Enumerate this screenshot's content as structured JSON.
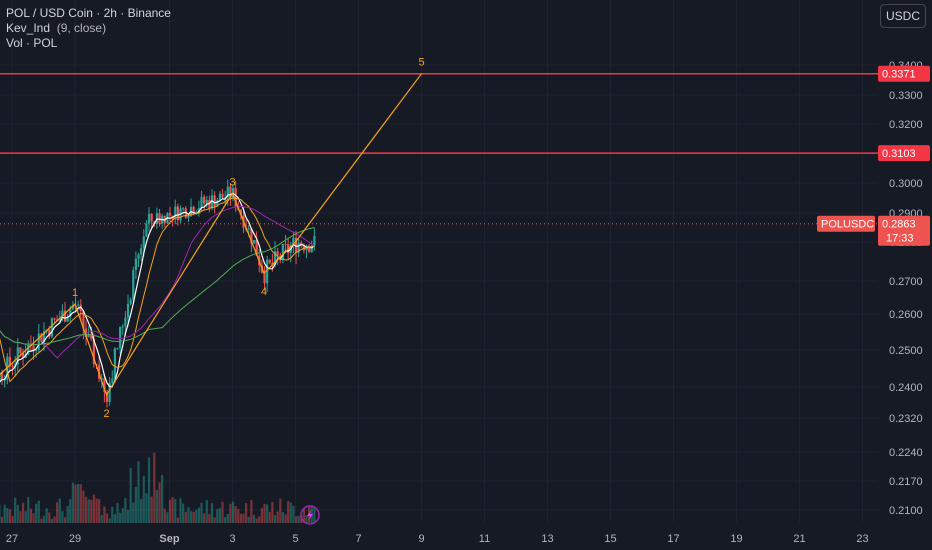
{
  "legend": {
    "symbol": "POL / USD Coin · 2h · Binance",
    "indicator": "Kev_Ind",
    "indicator_params": "(9, close)",
    "volume": "Vol · POL"
  },
  "toolbar": {
    "currency_button": "USDC"
  },
  "colors": {
    "background": "#161a25",
    "grid": "#1f2330",
    "up": "#26a69a",
    "down": "#ef5350",
    "resistance": "#f23645",
    "wave": "#f7a21b",
    "ma_fast": "#ffffff",
    "ma_mid": "#f7a21b",
    "ma_slow": "#9c27b0",
    "ma_long": "#4caf50",
    "icon_accent": "#9c27b0"
  },
  "price_labels": {
    "resistance_1": "0.3371",
    "resistance_2": "0.3103",
    "symbol_tag": "POLUSDC",
    "current_price": "0.2863",
    "countdown": "17:33"
  },
  "icons": {
    "lightning": "lightning-icon"
  },
  "chart_data": {
    "type": "candlestick",
    "title": "POL / USD Coin · 2h · Binance",
    "y_ticks": [
      "0.3400",
      "0.3300",
      "0.3200",
      "0.3100",
      "0.3000",
      "0.2900",
      "0.2800",
      "0.2700",
      "0.2600",
      "0.2500",
      "0.2400",
      "0.2320",
      "0.2240",
      "0.2170",
      "0.2100"
    ],
    "x_ticks": [
      "27",
      "29",
      "Sep",
      "3",
      "5",
      "7",
      "9",
      "11",
      "13",
      "15",
      "17",
      "19",
      "21",
      "23"
    ],
    "horizontal_lines": [
      0.3371,
      0.3103
    ],
    "last_price": 0.2863,
    "wave_labels": [
      "1",
      "2",
      "3",
      "4",
      "5"
    ],
    "wave_points": [
      {
        "date": "Aug 26",
        "price": 0.2385
      },
      {
        "date": "Aug 29",
        "price": 0.263,
        "label": "1"
      },
      {
        "date": "Aug 30",
        "price": 0.238,
        "label": "2"
      },
      {
        "date": "Sep 3",
        "price": 0.2965,
        "label": "3"
      },
      {
        "date": "Sep 4",
        "price": 0.272,
        "label": "4"
      },
      {
        "date": "Sep 5",
        "price": 0.28
      },
      {
        "date": "Sep 9",
        "price": 0.3371,
        "label": "5"
      }
    ],
    "grid": true
  }
}
